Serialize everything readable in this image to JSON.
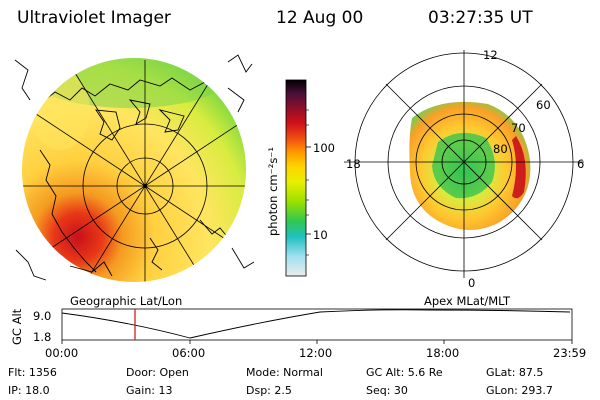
{
  "header": {
    "title": "Ultraviolet Imager",
    "date": "12 Aug 00",
    "time": "03:27:35 UT"
  },
  "colorbar": {
    "unit": "photon cm⁻²s⁻¹",
    "ticks": [
      "100",
      "10"
    ],
    "colors": [
      "#000000",
      "#4a0f3a",
      "#7a0f2a",
      "#c0101a",
      "#ee4010",
      "#ff9a00",
      "#ffd200",
      "#e8f000",
      "#9ce000",
      "#30c850",
      "#20c0c0",
      "#a0e0f0",
      "#e8e8e8"
    ]
  },
  "left_map": {
    "label": "Geographic Lat/Lon"
  },
  "right_map": {
    "label": "Apex  MLat/MLT",
    "mlt_labels": {
      "top": "12",
      "left": "18",
      "right": "6",
      "bottom": "0"
    },
    "lat_labels": [
      "60",
      "70",
      "80"
    ]
  },
  "altitude_plot": {
    "ylabel": "GC Alt",
    "yticks": [
      "9.0",
      "1.8"
    ],
    "xticks": [
      "00:00",
      "06:00",
      "12:00",
      "18:00",
      "23:59"
    ],
    "marker_color": "#d02020"
  },
  "status": {
    "row1": {
      "flt": "Flt:  1356",
      "door": "Door:  Open",
      "mode": "Mode:  Normal",
      "gcalt": "GC Alt:  5.6 Re",
      "glat": "GLat:   87.5"
    },
    "row2": {
      "ip": "IP:  18.0",
      "gain": "Gain:  13",
      "dsp": "Dsp:       2.5",
      "seq": "Seq:  30",
      "glon": "GLon:  293.7"
    }
  }
}
